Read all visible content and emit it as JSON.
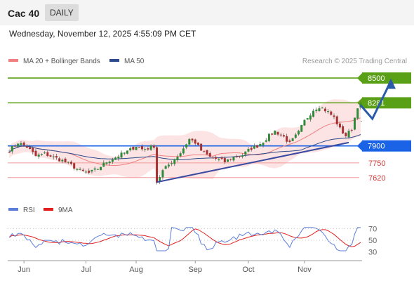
{
  "header": {
    "title": "Cac 40",
    "timeframe": "DAILY"
  },
  "timestamp": "Wednesday, November 12, 2025 4:55:09 PM CET",
  "credit": "Research © 2025 Trading Central",
  "colors": {
    "ma20": "#f08080",
    "ma50": "#2c4a8c",
    "bollinger_fill": "#fde4e4",
    "resistance": "#5aa016",
    "pivot": "#1a63e6",
    "support": "#f39a9a",
    "trendline": "#3a4aa0",
    "projection": "#2a5aa8",
    "candle_up": "#2e8b3a",
    "candle_down": "#a83232",
    "rsi": "#5b7fd6",
    "rsi_ma": "#e02020"
  },
  "chart_data": [
    {
      "type": "candlestick",
      "legend": [
        {
          "name": "MA 20 + Bollinger Bands",
          "color": "#f08080"
        },
        {
          "name": "MA 50",
          "color": "#2c4a8c"
        }
      ],
      "x_ticks": [
        "Jun",
        "Jul",
        "Aug",
        "Sep",
        "Oct",
        "Nov"
      ],
      "y_range": [
        7420,
        8600
      ],
      "levels": [
        {
          "value": 8500,
          "label": "8500",
          "kind": "resistance"
        },
        {
          "value": 8281,
          "label": "8281",
          "kind": "resistance"
        },
        {
          "value": 7900,
          "label": "7900",
          "kind": "pivot"
        },
        {
          "value": 7750,
          "label": "7750",
          "kind": "support"
        },
        {
          "value": 7620,
          "label": "7620",
          "kind": "support"
        }
      ],
      "close_path": [
        [
          0,
          7860
        ],
        [
          3,
          7930
        ],
        [
          6,
          7890
        ],
        [
          9,
          7810
        ],
        [
          12,
          7830
        ],
        [
          15,
          7800
        ],
        [
          18,
          7770
        ],
        [
          21,
          7730
        ],
        [
          24,
          7680
        ],
        [
          27,
          7660
        ],
        [
          30,
          7700
        ],
        [
          33,
          7760
        ],
        [
          36,
          7800
        ],
        [
          40,
          7850
        ],
        [
          43,
          7900
        ],
        [
          45,
          7870
        ],
        [
          47,
          7880
        ],
        [
          49,
          7900
        ],
        [
          50,
          7580
        ],
        [
          52,
          7680
        ],
        [
          55,
          7760
        ],
        [
          58,
          7840
        ],
        [
          61,
          7960
        ],
        [
          63,
          7930
        ],
        [
          65,
          7860
        ],
        [
          68,
          7800
        ],
        [
          71,
          7780
        ],
        [
          73,
          7760
        ],
        [
          76,
          7800
        ],
        [
          79,
          7820
        ],
        [
          82,
          7880
        ],
        [
          84,
          7900
        ],
        [
          86,
          7940
        ],
        [
          88,
          7990
        ],
        [
          90,
          8030
        ],
        [
          93,
          7980
        ],
        [
          95,
          7920
        ],
        [
          98,
          8020
        ],
        [
          100,
          8120
        ],
        [
          103,
          8220
        ],
        [
          105,
          8250
        ],
        [
          108,
          8200
        ],
        [
          110,
          8150
        ],
        [
          112,
          8050
        ],
        [
          114,
          7990
        ],
        [
          116,
          8050
        ],
        [
          118,
          8250
        ],
        [
          119,
          8260
        ]
      ],
      "trendline": {
        "from": [
          50,
          7580
        ],
        "to": [
          115,
          7930
        ]
      },
      "projection": [
        [
          119,
          8260
        ],
        [
          123,
          8140
        ],
        [
          129,
          8460
        ]
      ]
    },
    {
      "type": "line",
      "title": "RSI",
      "legend": [
        {
          "name": "RSI",
          "color": "#5b7fd6"
        },
        {
          "name": "9MA",
          "color": "#e02020"
        }
      ],
      "y_ticks": [
        70,
        50,
        30
      ],
      "y_range": [
        20,
        80
      ]
    }
  ]
}
